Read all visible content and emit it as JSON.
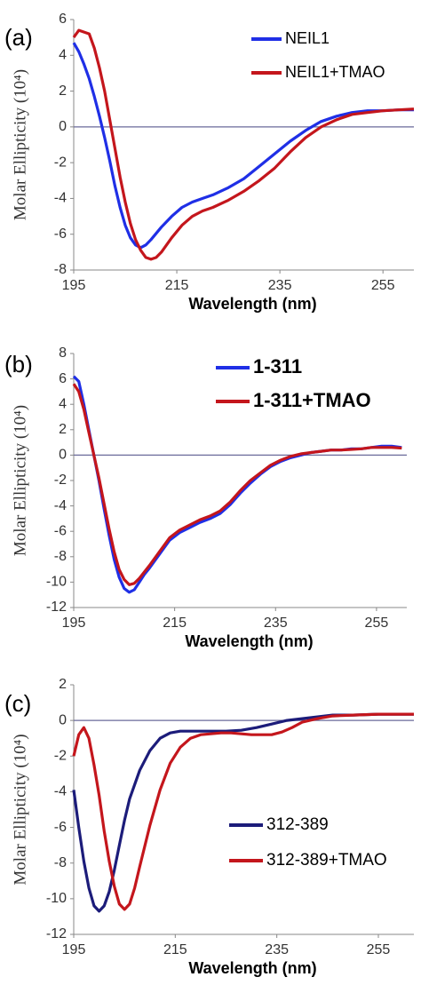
{
  "chart_data": [
    {
      "type": "line",
      "panel_label": "(a)",
      "xlabel": "Wavelength (nm)",
      "ylabel": "Molar Ellipticity (10⁴)",
      "xlim": [
        195,
        261
      ],
      "ylim": [
        -8,
        6
      ],
      "xticks": [
        195,
        215,
        235,
        255
      ],
      "yticks": [
        -8,
        -6,
        -4,
        -2,
        0,
        2,
        4,
        6
      ],
      "legend": "top-right",
      "series": [
        {
          "name": "NEIL1",
          "color": "#1f2fe6",
          "x": [
            195,
            196,
            197,
            198,
            199,
            200,
            201,
            202,
            203,
            204,
            205,
            206,
            207,
            208,
            209,
            210,
            212,
            214,
            216,
            218,
            220,
            222,
            225,
            228,
            231,
            234,
            237,
            240,
            243,
            246,
            249,
            252,
            255,
            258,
            261
          ],
          "y": [
            4.7,
            4.2,
            3.5,
            2.7,
            1.7,
            0.6,
            -0.6,
            -1.9,
            -3.3,
            -4.5,
            -5.5,
            -6.2,
            -6.6,
            -6.75,
            -6.6,
            -6.3,
            -5.6,
            -5.0,
            -4.5,
            -4.2,
            -4.0,
            -3.8,
            -3.4,
            -2.9,
            -2.2,
            -1.5,
            -0.8,
            -0.2,
            0.3,
            0.6,
            0.8,
            0.9,
            0.9,
            0.95,
            0.95
          ]
        },
        {
          "name": "NEIL1+TMAO",
          "color": "#c4161c",
          "x": [
            195,
            196,
            197,
            198,
            199,
            200,
            201,
            202,
            203,
            204,
            205,
            206,
            207,
            208,
            209,
            210,
            211,
            212,
            214,
            216,
            218,
            220,
            222,
            225,
            228,
            231,
            234,
            237,
            240,
            243,
            246,
            249,
            252,
            255,
            258,
            261
          ],
          "y": [
            5.0,
            5.4,
            5.3,
            5.2,
            4.4,
            3.3,
            2.0,
            0.4,
            -1.2,
            -2.8,
            -4.2,
            -5.4,
            -6.3,
            -6.9,
            -7.3,
            -7.4,
            -7.3,
            -7.0,
            -6.2,
            -5.5,
            -5.0,
            -4.7,
            -4.5,
            -4.1,
            -3.6,
            -3.0,
            -2.3,
            -1.4,
            -0.6,
            0.0,
            0.4,
            0.7,
            0.8,
            0.9,
            0.95,
            1.0
          ]
        }
      ]
    },
    {
      "type": "line",
      "panel_label": "(b)",
      "xlabel": "Wavelength (nm)",
      "ylabel": "Molar Ellipticity (10⁴)",
      "xlim": [
        195,
        261
      ],
      "ylim": [
        -12,
        8
      ],
      "xticks": [
        195,
        215,
        235,
        255
      ],
      "yticks": [
        -12,
        -10,
        -8,
        -6,
        -4,
        -2,
        0,
        2,
        4,
        6,
        8
      ],
      "legend": "top-right",
      "series": [
        {
          "name": "1-311",
          "color": "#1f2fe6",
          "x": [
            195,
            196,
            197,
            198,
            199,
            200,
            201,
            202,
            203,
            204,
            205,
            206,
            207,
            208,
            209,
            210,
            212,
            214,
            216,
            218,
            220,
            222,
            224,
            226,
            228,
            230,
            232,
            234,
            236,
            238,
            240,
            242,
            244,
            246,
            248,
            250,
            252,
            254,
            256,
            258,
            260
          ],
          "y": [
            6.2,
            5.8,
            4.0,
            2.0,
            0.0,
            -2.0,
            -4.2,
            -6.3,
            -8.2,
            -9.6,
            -10.5,
            -10.8,
            -10.6,
            -10.0,
            -9.4,
            -8.9,
            -7.8,
            -6.7,
            -6.1,
            -5.7,
            -5.3,
            -5.0,
            -4.6,
            -3.9,
            -3.0,
            -2.2,
            -1.5,
            -0.9,
            -0.5,
            -0.2,
            0.0,
            0.2,
            0.3,
            0.4,
            0.4,
            0.5,
            0.5,
            0.6,
            0.7,
            0.7,
            0.6
          ]
        },
        {
          "name": "1-311+TMAO",
          "color": "#c4161c",
          "x": [
            195,
            196,
            197,
            198,
            199,
            200,
            201,
            202,
            203,
            204,
            205,
            206,
            207,
            208,
            209,
            210,
            212,
            214,
            216,
            218,
            220,
            222,
            224,
            226,
            228,
            230,
            232,
            234,
            236,
            238,
            240,
            242,
            244,
            246,
            248,
            250,
            252,
            254,
            256,
            258,
            260
          ],
          "y": [
            5.6,
            5.0,
            3.6,
            1.8,
            0.0,
            -1.8,
            -3.8,
            -5.8,
            -7.6,
            -9.0,
            -9.8,
            -10.2,
            -10.1,
            -9.7,
            -9.2,
            -8.7,
            -7.6,
            -6.5,
            -5.9,
            -5.5,
            -5.1,
            -4.8,
            -4.4,
            -3.7,
            -2.8,
            -2.0,
            -1.4,
            -0.8,
            -0.4,
            -0.1,
            0.1,
            0.2,
            0.3,
            0.4,
            0.4,
            0.45,
            0.5,
            0.6,
            0.6,
            0.6,
            0.55
          ]
        }
      ]
    },
    {
      "type": "line",
      "panel_label": "(c)",
      "xlabel": "Wavelength (nm)",
      "ylabel": "Molar Ellipticity (10⁴)",
      "xlim": [
        195,
        262
      ],
      "ylim": [
        -12,
        2
      ],
      "xticks": [
        195,
        215,
        235,
        255
      ],
      "yticks": [
        -12,
        -10,
        -8,
        -6,
        -4,
        -2,
        0,
        2
      ],
      "legend": "lower-right",
      "series": [
        {
          "name": "312-389",
          "color": "#1c1c7a",
          "x": [
            195,
            196,
            197,
            198,
            199,
            200,
            201,
            202,
            203,
            204,
            205,
            206,
            208,
            210,
            212,
            214,
            216,
            218,
            220,
            222,
            225,
            228,
            231,
            234,
            237,
            240,
            243,
            246,
            250,
            255,
            262
          ],
          "y": [
            -3.9,
            -6.0,
            -7.9,
            -9.4,
            -10.4,
            -10.7,
            -10.4,
            -9.6,
            -8.4,
            -7.0,
            -5.6,
            -4.4,
            -2.8,
            -1.7,
            -1.0,
            -0.7,
            -0.6,
            -0.6,
            -0.6,
            -0.6,
            -0.6,
            -0.55,
            -0.4,
            -0.2,
            0.0,
            0.1,
            0.2,
            0.3,
            0.3,
            0.35,
            0.35
          ]
        },
        {
          "name": "312-389+TMAO",
          "color": "#c4161c",
          "x": [
            195,
            196,
            197,
            198,
            199,
            200,
            201,
            202,
            203,
            204,
            205,
            206,
            207,
            208,
            210,
            212,
            214,
            216,
            218,
            220,
            222,
            224,
            226,
            228,
            230,
            232,
            234,
            236,
            238,
            240,
            243,
            246,
            250,
            255,
            262
          ],
          "y": [
            -2.0,
            -0.8,
            -0.4,
            -1.0,
            -2.5,
            -4.2,
            -6.2,
            -7.9,
            -9.3,
            -10.3,
            -10.6,
            -10.3,
            -9.4,
            -8.2,
            -5.9,
            -3.9,
            -2.4,
            -1.5,
            -1.0,
            -0.8,
            -0.75,
            -0.7,
            -0.7,
            -0.75,
            -0.8,
            -0.8,
            -0.8,
            -0.65,
            -0.4,
            -0.1,
            0.1,
            0.25,
            0.3,
            0.35,
            0.35
          ]
        }
      ]
    }
  ]
}
